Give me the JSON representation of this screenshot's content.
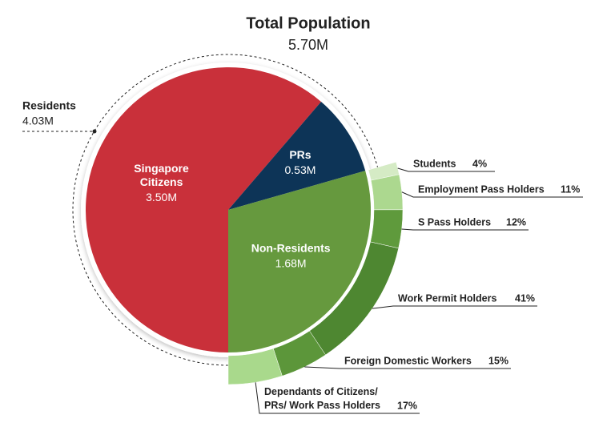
{
  "chart_data": [
    {
      "type": "pie",
      "title": "Total Population",
      "total": 5.7,
      "total_label": "5.70M",
      "categories": [
        "Singapore\nCitizens",
        "PRs",
        "Non-Residents"
      ],
      "values": [
        3.5,
        0.53,
        1.68
      ],
      "value_labels": [
        "3.50M",
        "0.53M",
        "1.68M"
      ],
      "colors": [
        "#c9303a",
        "#0d3457",
        "#66993e"
      ],
      "group": {
        "name": "Residents",
        "value": 4.03,
        "value_label": "4.03M"
      }
    },
    {
      "type": "ring",
      "categories": [
        "Students",
        "Employment Pass Holders",
        "S Pass Holders",
        "Work Permit Holders",
        "Foreign Domestic Workers",
        "Dependants of Citizens/\nPRs/ Work Pass Holders"
      ],
      "values": [
        4,
        11,
        12,
        41,
        15,
        17
      ],
      "value_labels": [
        "4%",
        "11%",
        "12%",
        "41%",
        "15%",
        "17%"
      ],
      "colors": [
        "#d5ebc5",
        "#acd88f",
        "#5f9a3c",
        "#4e8731",
        "#5c963a",
        "#a9d98c"
      ]
    }
  ]
}
